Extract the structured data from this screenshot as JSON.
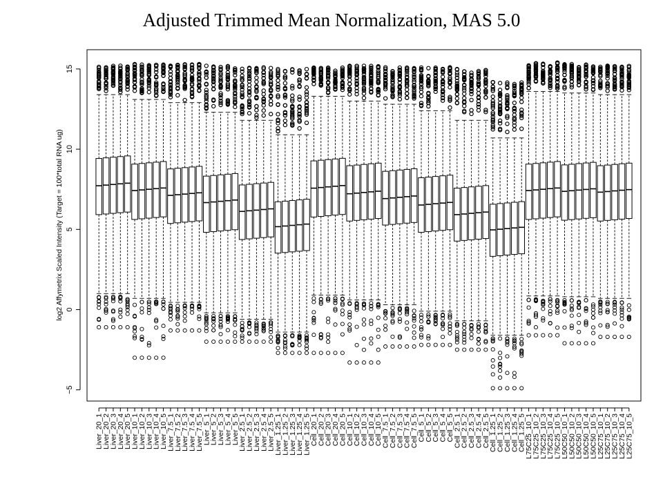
{
  "chart_data": {
    "type": "boxplot",
    "title": "Adjusted Trimmed Mean Normalization, MAS 5.0",
    "xlabel": "",
    "ylabel": "log2 Affymetrix Scaled Intensity (Target = 100*total RNA ug)",
    "ylim": [
      -5.7,
      16.2
    ],
    "yticks": [
      -5,
      0,
      5,
      10,
      15
    ],
    "grid": false,
    "legend": "none",
    "categories": [
      "Liver_20_1",
      "Liver_20_2",
      "Liver_20_3",
      "Liver_20_4",
      "Liver_20_5",
      "Liver_10_1",
      "Liver_10_2",
      "Liver_10_3",
      "Liver_10_4",
      "Liver_10_5",
      "Liver_7.5_1",
      "Liver_7.5_2",
      "Liver_7.5_3",
      "Liver_7.5_4",
      "Liver_7.5_5",
      "Liver_5_1",
      "Liver_5_2",
      "Liver_5_3",
      "Liver_5_4",
      "Liver_5_5",
      "Liver_2.5_1",
      "Liver_2.5_2",
      "Liver_2.5_3",
      "Liver_2.5_4",
      "Liver_2.5_5",
      "Liver_1.25_1",
      "Liver_1.25_2",
      "Liver_1.25_3",
      "Liver_1.25_4",
      "Liver_1.25_5",
      "Cell_20_1",
      "Cell_20_2",
      "Cell_20_3",
      "Cell_20_4",
      "Cell_20_5",
      "Cell_10_1",
      "Cell_10_2",
      "Cell_10_3",
      "Cell_10_4",
      "Cell_10_5",
      "Cell_7.5_1",
      "Cell_7.5_2",
      "Cell_7.5_3",
      "Cell_7.5_4",
      "Cell_7.5_5",
      "Cell_5_1",
      "Cell_5_2",
      "Cell_5_3",
      "Cell_5_4",
      "Cell_5_5",
      "Cell_2.5_1",
      "Cell_2.5_2",
      "Cell_2.5_3",
      "Cell_2.5_4",
      "Cell_2.5_5",
      "Cell_1.25_1",
      "Cell_1.25_2",
      "Cell_1.25_3",
      "Cell_1.25_4",
      "Cell_1.25_5",
      "L75C25_10_1",
      "L75C25_10_2",
      "L75C25_10_3",
      "L75C25_10_4",
      "L75C25_10_5",
      "L50C50_10_1",
      "L50C50_10_2",
      "L50C50_10_3",
      "L50C50_10_4",
      "L50C50_10_5",
      "L25C75_10_1",
      "L25C75_10_2",
      "L25C75_10_3",
      "L25C75_10_4",
      "L25C75_10_5"
    ],
    "groups": [
      {
        "count": 5,
        "median": 7.8,
        "q1": 6.0,
        "q3": 9.5,
        "whisker_low": 1.0,
        "whisker_high": 13.4,
        "outlier_low_min": -1.1,
        "outlier_high_max": 15.2
      },
      {
        "count": 5,
        "median": 7.5,
        "q1": 5.7,
        "q3": 9.15,
        "whisker_low": 0.7,
        "whisker_high": 13.1,
        "outlier_low_min": -3.0,
        "outlier_high_max": 15.3
      },
      {
        "count": 5,
        "median": 7.2,
        "q1": 5.45,
        "q3": 8.85,
        "whisker_low": 0.45,
        "whisker_high": 12.9,
        "outlier_low_min": -1.3,
        "outlier_high_max": 15.3
      },
      {
        "count": 5,
        "median": 6.75,
        "q1": 4.9,
        "q3": 8.4,
        "whisker_low": -0.2,
        "whisker_high": 12.3,
        "outlier_low_min": -2.0,
        "outlier_high_max": 15.2
      },
      {
        "count": 5,
        "median": 6.2,
        "q1": 4.45,
        "q3": 7.85,
        "whisker_low": -0.6,
        "whisker_high": 11.8,
        "outlier_low_min": -2.0,
        "outlier_high_max": 15.1
      },
      {
        "count": 5,
        "median": 5.25,
        "q1": 3.6,
        "q3": 6.8,
        "whisker_low": -1.4,
        "whisker_high": 10.9,
        "outlier_low_min": -2.7,
        "outlier_high_max": 15.0
      },
      {
        "count": 5,
        "median": 7.65,
        "q1": 5.85,
        "q3": 9.35,
        "whisker_low": 0.9,
        "whisker_high": 13.3,
        "outlier_low_min": -2.7,
        "outlier_high_max": 15.1
      },
      {
        "count": 5,
        "median": 7.3,
        "q1": 5.6,
        "q3": 9.05,
        "whisker_low": 0.6,
        "whisker_high": 13.0,
        "outlier_low_min": -3.3,
        "outlier_high_max": 15.2
      },
      {
        "count": 5,
        "median": 7.0,
        "q1": 5.35,
        "q3": 8.7,
        "whisker_low": 0.3,
        "whisker_high": 12.8,
        "outlier_low_min": -2.3,
        "outlier_high_max": 15.1
      },
      {
        "count": 5,
        "median": 6.6,
        "q1": 4.9,
        "q3": 8.3,
        "whisker_low": -0.1,
        "whisker_high": 12.4,
        "outlier_low_min": -2.2,
        "outlier_high_max": 15.1
      },
      {
        "count": 5,
        "median": 6.0,
        "q1": 4.35,
        "q3": 7.65,
        "whisker_low": -0.7,
        "whisker_high": 11.8,
        "outlier_low_min": -2.5,
        "outlier_high_max": 15.0
      },
      {
        "count": 5,
        "median": 5.05,
        "q1": 3.4,
        "q3": 6.65,
        "whisker_low": -1.6,
        "whisker_high": 10.7,
        "outlier_low_min": -4.9,
        "outlier_high_max": 14.2
      },
      {
        "count": 5,
        "median": 7.5,
        "q1": 5.7,
        "q3": 9.15,
        "whisker_low": 0.85,
        "whisker_high": 13.6,
        "outlier_low_min": -1.6,
        "outlier_high_max": 15.4
      },
      {
        "count": 5,
        "median": 7.45,
        "q1": 5.65,
        "q3": 9.1,
        "whisker_low": 0.8,
        "whisker_high": 13.5,
        "outlier_low_min": -2.1,
        "outlier_high_max": 15.3
      },
      {
        "count": 5,
        "median": 7.4,
        "q1": 5.6,
        "q3": 9.05,
        "whisker_low": 0.7,
        "whisker_high": 13.4,
        "outlier_low_min": -1.7,
        "outlier_high_max": 15.2
      }
    ]
  }
}
